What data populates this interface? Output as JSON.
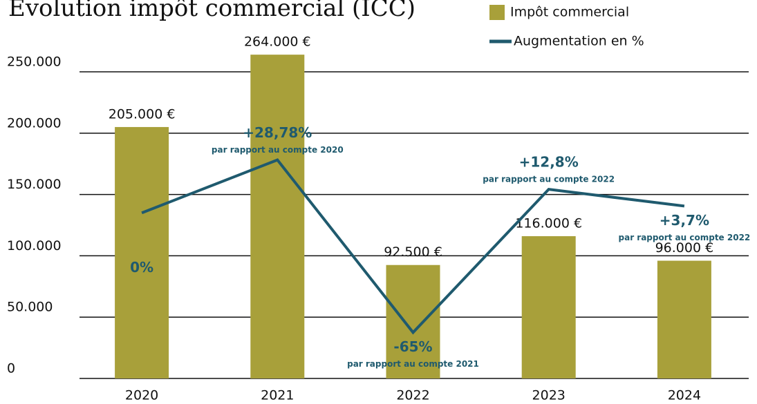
{
  "chart_data": {
    "type": "bar",
    "title": "Évolution impôt commercial (ICC)",
    "categories": [
      "2020",
      "2021",
      "2022",
      "2023",
      "2024"
    ],
    "series": [
      {
        "name": "Impôt commercial",
        "type": "bar",
        "color": "#a8a03a",
        "values": [
          205000,
          264000,
          92500,
          116000,
          96000
        ],
        "value_labels": [
          "205.000 €",
          "264.000 €",
          "92.500 €",
          "116.000 €",
          "96.000 €"
        ]
      },
      {
        "name": "Augmentation en %",
        "type": "line",
        "axis": "y2",
        "color": "#1f5a6e",
        "values": [
          0,
          28.78,
          -65,
          12.8,
          3.7
        ],
        "value_labels": [
          "0%",
          "+28,78%",
          "-65%",
          "+12,8%",
          "+3,7%"
        ],
        "notes": [
          null,
          "par rapport au compte 2020",
          "par rapport au compte 2021",
          "par rapport au compte 2022",
          "par rapport au compte 2022"
        ]
      }
    ],
    "ylim": [
      0,
      270000
    ],
    "yticks": [
      0,
      {
        "value": 50000,
        "label": "50.000"
      },
      {
        "value": 100000,
        "label": "100.000"
      },
      {
        "value": 150000,
        "label": "150.000"
      },
      {
        "value": 200000,
        "label": "200.000"
      },
      {
        "value": 250000,
        "label": "250.000"
      }
    ],
    "y2lim": [
      -90,
      90
    ],
    "grid": true,
    "legend": "top-right"
  }
}
